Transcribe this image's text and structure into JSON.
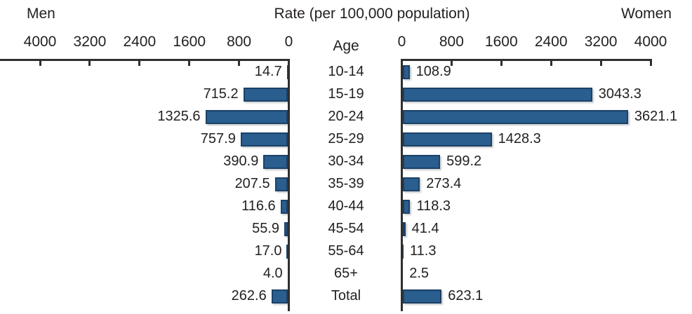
{
  "header": {
    "left_label": "Men",
    "title": "Rate (per 100,000 population)",
    "right_label": "Women",
    "age_label": "Age"
  },
  "chart_data": {
    "type": "bar",
    "subtype": "population-pyramid",
    "title": "Rate (per 100,000 population)",
    "xlabel": "Rate (per 100,000 population)",
    "ylabel": "Age",
    "categories": [
      "10-14",
      "15-19",
      "20-24",
      "25-29",
      "30-34",
      "35-39",
      "40-44",
      "45-54",
      "55-64",
      "65+",
      "Total"
    ],
    "series": [
      {
        "name": "Men",
        "side": "left",
        "values": [
          14.7,
          715.2,
          1325.6,
          757.9,
          390.9,
          207.5,
          116.6,
          55.9,
          17.0,
          4.0,
          262.6
        ]
      },
      {
        "name": "Women",
        "side": "right",
        "values": [
          108.9,
          3043.3,
          3621.1,
          1428.3,
          599.2,
          273.4,
          118.3,
          41.4,
          11.3,
          2.5,
          623.1
        ]
      }
    ],
    "axis": {
      "ticks": [
        0,
        800,
        1600,
        2400,
        3200,
        4000
      ],
      "min": 0,
      "max": 4000,
      "mirrored": true
    },
    "value_labels_shown": true,
    "grid": false,
    "legend": "none",
    "bar_color": "#295e8f",
    "bar_border_color": "#1c4166",
    "line_color": "#2f2f2f",
    "text_color": "#231f20"
  }
}
